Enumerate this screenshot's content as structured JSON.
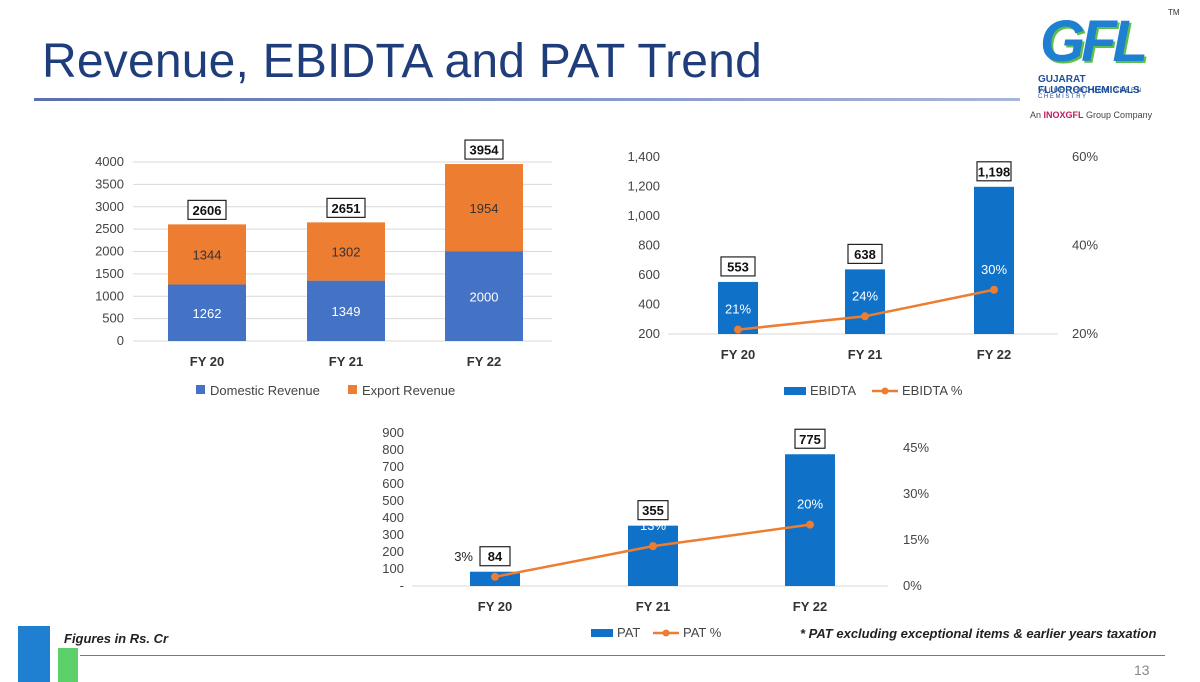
{
  "title": "Revenue, EBIDTA and PAT Trend",
  "logo": {
    "mark": "GFL",
    "tm": "TM",
    "company": "GUJARAT FLUOROCHEMICALS",
    "tagline": "VALUE THROUGH GREEN CHEMISTRY",
    "group_prefix": "An",
    "group_brand": "INOXGFL",
    "group_suffix": "Group Company"
  },
  "colors": {
    "blue": "#4472c4",
    "orange": "#ed7d31",
    "ebitda_blue": "#0f72c8",
    "line_orange": "#ed7d31"
  },
  "chart_data": [
    {
      "type": "bar",
      "stacked": true,
      "categories": [
        "FY 20",
        "FY 21",
        "FY 22"
      ],
      "series": [
        {
          "name": "Domestic Revenue",
          "values": [
            1262,
            1349,
            2000
          ]
        },
        {
          "name": "Export Revenue",
          "values": [
            1344,
            1302,
            1954
          ]
        }
      ],
      "totals": [
        2606,
        2651,
        3954
      ],
      "ylim": [
        0,
        4000
      ],
      "yticks": [
        "0",
        "500",
        "1000",
        "1500",
        "2000",
        "2500",
        "3000",
        "3500",
        "4000"
      ],
      "legend": "bottom"
    },
    {
      "type": "bar+line",
      "categories": [
        "FY 20",
        "FY 21",
        "FY 22"
      ],
      "bars": {
        "name": "EBIDTA",
        "values": [
          553,
          638,
          1198
        ],
        "labels": [
          "553",
          "638",
          "1,198"
        ]
      },
      "line": {
        "name": "EBIDTA %",
        "values": [
          21,
          24,
          30
        ],
        "labels": [
          "21%",
          "24%",
          "30%"
        ]
      },
      "ylim": [
        200,
        1400
      ],
      "yticks": [
        "200",
        "400",
        "600",
        "800",
        "1,000",
        "1,200",
        "1,400"
      ],
      "y2lim": [
        20,
        60
      ],
      "y2ticks": [
        "20%",
        "40%",
        "60%"
      ],
      "legend": "bottom"
    },
    {
      "type": "bar+line",
      "categories": [
        "FY 20",
        "FY 21",
        "FY 22"
      ],
      "bars": {
        "name": "PAT",
        "values": [
          84,
          355,
          775
        ],
        "labels": [
          "84",
          "355",
          "775"
        ]
      },
      "line": {
        "name": "PAT %",
        "values": [
          3,
          13,
          20
        ],
        "labels": [
          "3%",
          "13%",
          "20%"
        ]
      },
      "ylim": [
        0,
        900
      ],
      "yticks": [
        "-",
        "100",
        "200",
        "300",
        "400",
        "500",
        "600",
        "700",
        "800",
        "900"
      ],
      "y2lim": [
        0,
        45
      ],
      "y2ticks": [
        "0%",
        "15%",
        "30%",
        "45%"
      ],
      "legend": "bottom"
    }
  ],
  "footer": {
    "figures_note": "Figures in Rs. Cr",
    "pat_note": "* PAT excluding exceptional items & earlier years taxation",
    "page_number": "13"
  }
}
